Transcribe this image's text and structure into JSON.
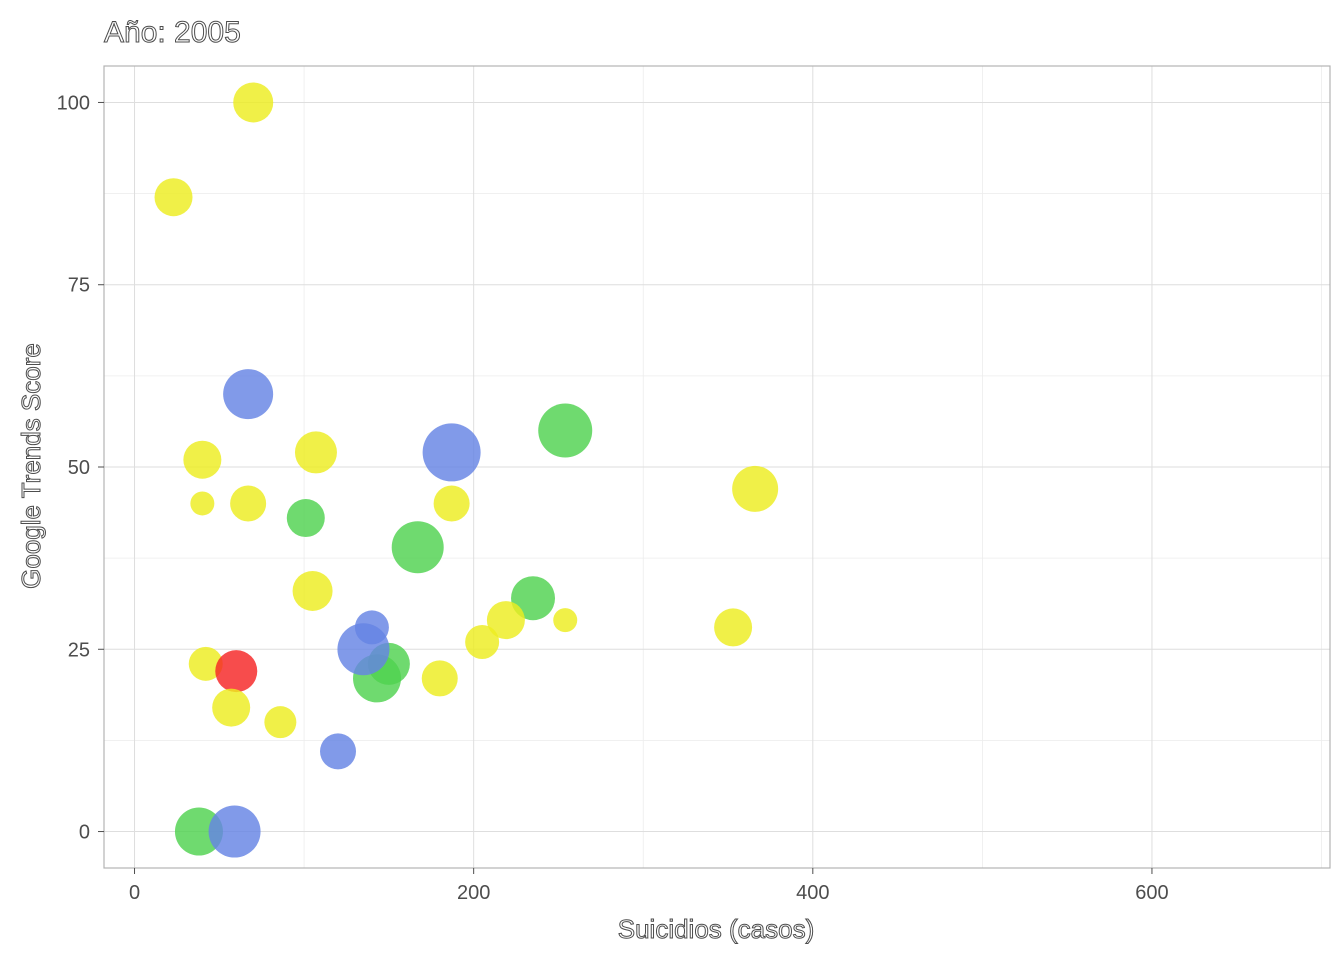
{
  "chart_data": {
    "type": "scatter",
    "title": "Año: 2005",
    "xlabel": "Suicidios (casos)",
    "ylabel": "Google Trends Score",
    "xlim": [
      -18,
      705
    ],
    "ylim": [
      -5,
      105
    ],
    "x_ticks": [
      0,
      200,
      400,
      600
    ],
    "y_ticks": [
      0,
      25,
      50,
      75,
      100
    ],
    "x_tick_labels": [
      "0",
      "200",
      "400",
      "600"
    ],
    "y_tick_labels": [
      "0",
      "25",
      "50",
      "75",
      "100"
    ],
    "grid": true,
    "legend": "none",
    "colors": {
      "yellow": "#eded20",
      "blue": "#6584e4",
      "green": "#4fd24f",
      "red": "#f52525"
    },
    "points": [
      {
        "x": 70,
        "y": 100,
        "size": 20,
        "color": "yellow"
      },
      {
        "x": 23,
        "y": 87,
        "size": 19,
        "color": "yellow"
      },
      {
        "x": 67,
        "y": 60,
        "size": 25,
        "color": "blue"
      },
      {
        "x": 40,
        "y": 51,
        "size": 19,
        "color": "yellow"
      },
      {
        "x": 107,
        "y": 52,
        "size": 21,
        "color": "yellow"
      },
      {
        "x": 187,
        "y": 52,
        "size": 29,
        "color": "blue"
      },
      {
        "x": 254,
        "y": 55,
        "size": 27,
        "color": "green"
      },
      {
        "x": 366,
        "y": 47,
        "size": 23,
        "color": "yellow"
      },
      {
        "x": 40,
        "y": 45,
        "size": 12,
        "color": "yellow"
      },
      {
        "x": 67,
        "y": 45,
        "size": 18,
        "color": "yellow"
      },
      {
        "x": 101,
        "y": 43,
        "size": 19,
        "color": "green"
      },
      {
        "x": 187,
        "y": 45,
        "size": 18,
        "color": "yellow"
      },
      {
        "x": 167,
        "y": 39,
        "size": 26,
        "color": "green"
      },
      {
        "x": 105,
        "y": 33,
        "size": 20,
        "color": "yellow"
      },
      {
        "x": 235,
        "y": 32,
        "size": 22,
        "color": "green"
      },
      {
        "x": 219,
        "y": 29,
        "size": 19,
        "color": "yellow"
      },
      {
        "x": 254,
        "y": 29,
        "size": 12,
        "color": "yellow"
      },
      {
        "x": 353,
        "y": 28,
        "size": 19,
        "color": "yellow"
      },
      {
        "x": 140,
        "y": 28,
        "size": 17,
        "color": "blue"
      },
      {
        "x": 205,
        "y": 26,
        "size": 17,
        "color": "yellow"
      },
      {
        "x": 150,
        "y": 23,
        "size": 21,
        "color": "green"
      },
      {
        "x": 143,
        "y": 21,
        "size": 24,
        "color": "green"
      },
      {
        "x": 135,
        "y": 25,
        "size": 26,
        "color": "blue"
      },
      {
        "x": 42,
        "y": 23,
        "size": 17,
        "color": "yellow"
      },
      {
        "x": 60,
        "y": 22,
        "size": 21,
        "color": "red"
      },
      {
        "x": 180,
        "y": 21,
        "size": 18,
        "color": "yellow"
      },
      {
        "x": 57,
        "y": 17,
        "size": 19,
        "color": "yellow"
      },
      {
        "x": 86,
        "y": 15,
        "size": 16,
        "color": "yellow"
      },
      {
        "x": 120,
        "y": 11,
        "size": 18,
        "color": "blue"
      },
      {
        "x": 38,
        "y": 0,
        "size": 24,
        "color": "green"
      },
      {
        "x": 59,
        "y": 0,
        "size": 26,
        "color": "blue"
      }
    ]
  }
}
